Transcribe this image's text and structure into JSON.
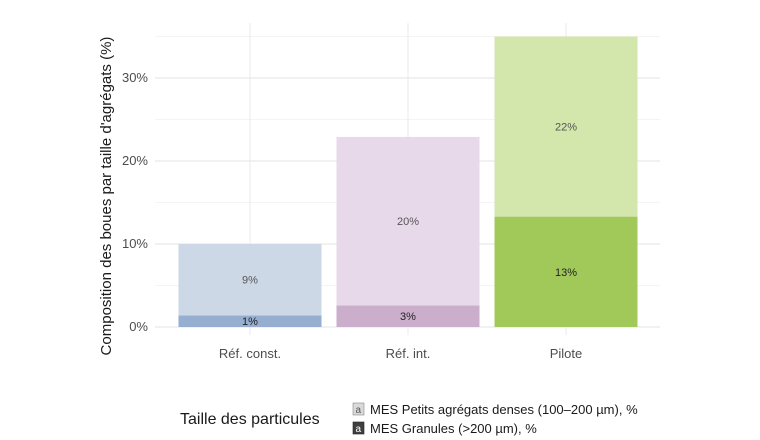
{
  "chart_data": {
    "type": "bar",
    "stacked": true,
    "ylabel": "Composition des boues par taille d'agrégats (%)",
    "xlabel": "",
    "categories": [
      "Réf. const.",
      "Réf. int.",
      "Pilote"
    ],
    "ylim": [
      0,
      37
    ],
    "yticks": [
      0,
      10,
      20,
      30
    ],
    "ytick_labels": [
      "0%",
      "10%",
      "20%",
      "30%"
    ],
    "grid": true,
    "legend_title": "Taille des particules",
    "legend_position": "bottom",
    "series": [
      {
        "name": "MES Granules (>200 µm), %",
        "values": [
          1.4,
          2.6,
          13.3
        ],
        "labels": [
          "1%",
          "3%",
          "13%"
        ]
      },
      {
        "name": "MES Petits agrégats denses (100–200 µm), %",
        "values": [
          8.6,
          20.3,
          21.7
        ],
        "labels": [
          "9%",
          "20%",
          "22%"
        ]
      }
    ],
    "colors": {
      "Réf. const.": {
        "MES Granules (>200 µm), %": "#96aecf",
        "MES Petits agrégats denses (100–200 µm), %": "#cdd8e6"
      },
      "Réf. int.": {
        "MES Granules (>200 µm), %": "#cbaecc",
        "MES Petits agrégats denses (100–200 µm), %": "#e7d9e9"
      },
      "Pilote": {
        "MES Granules (>200 µm), %": "#a1c95a",
        "MES Petits agrégats denses (100–200 µm), %": "#d3e6ac"
      }
    }
  },
  "legend": {
    "title": "Taille des particules",
    "items": [
      {
        "key_letter": "a",
        "label": "MES Petits agrégats denses (100–200 µm), %",
        "fill": "#d9d9d9",
        "letter_color": "#555555"
      },
      {
        "key_letter": "a",
        "label": "MES Granules (>200 µm), %",
        "fill": "#3f3f3f",
        "letter_color": "#ffffff"
      }
    ]
  }
}
